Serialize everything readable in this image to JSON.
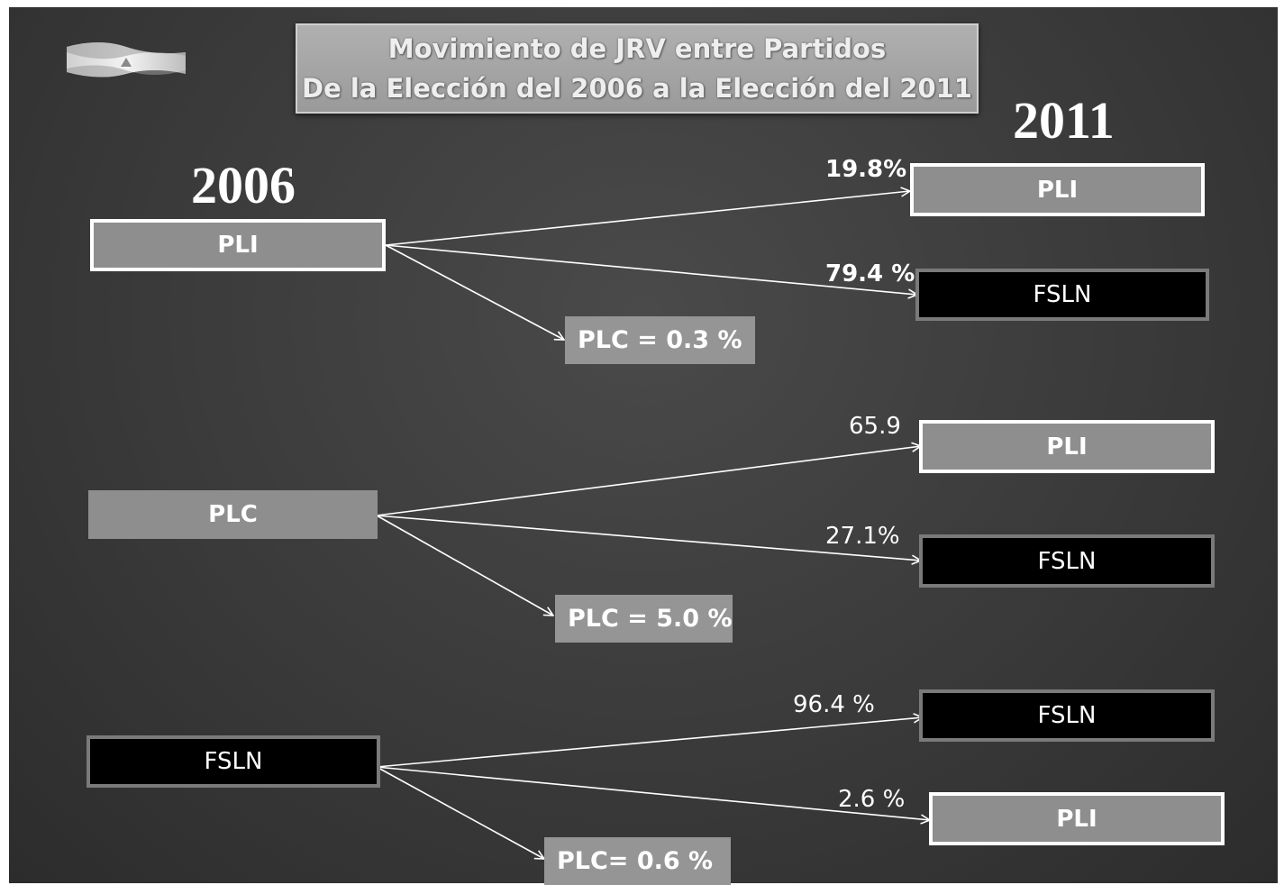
{
  "title": {
    "line1": "Movimiento de JRV entre Partidos",
    "line2": "De la Elección del 2006 a la Elección del 2011"
  },
  "years": {
    "from": "2006",
    "to": "2011"
  },
  "flag_icon": "nicaragua-flag-icon",
  "colors": {
    "grey_box": "#8e8e8e",
    "black_box": "#000000",
    "background": "#3a3a3a"
  },
  "groups": [
    {
      "source": "PLI",
      "targets": [
        {
          "label": "PLI",
          "percent": "19.8%"
        },
        {
          "label": "FSLN",
          "percent": "79.4 %"
        }
      ],
      "plc": "PLC = 0.3 %"
    },
    {
      "source": "PLC",
      "targets": [
        {
          "label": "PLI",
          "percent": "65.9"
        },
        {
          "label": "FSLN",
          "percent": "27.1%"
        }
      ],
      "plc": "PLC = 5.0 %"
    },
    {
      "source": "FSLN",
      "targets": [
        {
          "label": "FSLN",
          "percent": "96.4 %"
        },
        {
          "label": "PLI",
          "percent": "2.6 %"
        }
      ],
      "plc": "PLC= 0.6 %"
    }
  ]
}
